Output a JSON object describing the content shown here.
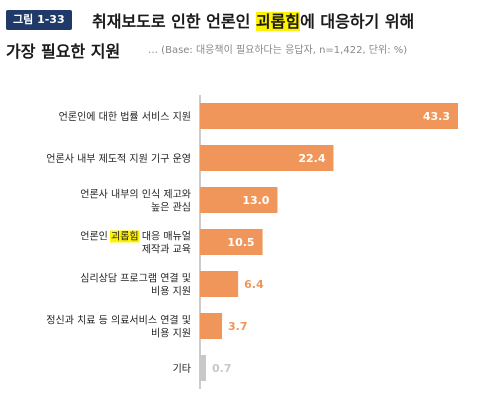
{
  "figure": {
    "number": "그림 1-33",
    "title_prefix": "취재보도로 인한 언론인 ",
    "title_highlight": "괴롭힘",
    "title_suffix": "에 대응하기 위해",
    "title_line2": "가장 필요한 지원",
    "subtitle": "… (Base: 대응책이 필요하다는 응답자, n=1,422, 단위: %)"
  },
  "colors": {
    "bar": "#f0965a",
    "bar_last": "#c8c8c8",
    "axis": "#999999",
    "highlight": "#fff200",
    "badge": "#1f3a68"
  },
  "chart_data": {
    "type": "bar",
    "orientation": "horizontal",
    "unit": "%",
    "title": "취재보도로 인한 언론인 괴롭힘에 대응하기 위해 가장 필요한 지원",
    "categories": [
      [
        "언론인에 대한 법률 서비스 지원"
      ],
      [
        "언론사 내부 제도적 지원 기구 운영"
      ],
      [
        "언론사 내부의 인식 제고와",
        "높은 관심"
      ],
      [
        "언론인 괴롭힘 대응 매뉴얼",
        "제작과 교육"
      ],
      [
        "심리상담 프로그램 연결 및",
        "비용 지원"
      ],
      [
        "정신과 치료 등 의료서비스 연결 및",
        "비용 지원"
      ],
      [
        "기타"
      ]
    ],
    "values": [
      43.3,
      22.4,
      13.0,
      10.5,
      6.4,
      3.7,
      0.7
    ],
    "value_labels": [
      "43.3",
      "22.4",
      "13.0",
      "10.5",
      "6.4",
      "3.7",
      "0.7"
    ],
    "highlight_word": "괴롭힘",
    "xlim": [
      0,
      43.3
    ],
    "grid": false,
    "legend": "none"
  }
}
